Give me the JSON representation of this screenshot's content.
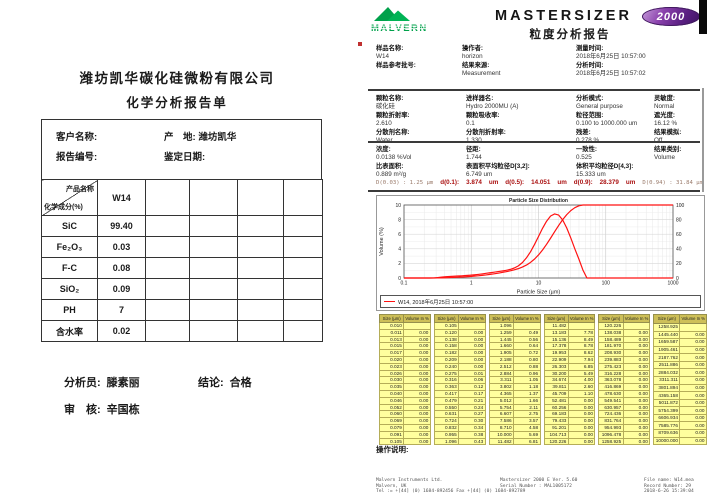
{
  "left_report": {
    "company": "潍坊凯华碳化硅微粉有限公司",
    "title": "化学分析报告单",
    "info": {
      "customer_label": "客户名称:",
      "origin_label": "产　地:",
      "origin_value": "潍坊凯华",
      "report_no_label": "报告编号:",
      "date_label": "鉴定日期:"
    },
    "table": {
      "product_header": "产品名称",
      "composition_header": "化学成分(%)",
      "product_value": "W14",
      "rows": [
        {
          "name": "SiC",
          "value": "99.40"
        },
        {
          "name": "Fe₂O₃",
          "value": "0.03"
        },
        {
          "name": "F-C",
          "value": "0.08"
        },
        {
          "name": "SiO₂",
          "value": "0.09"
        },
        {
          "name": "PH",
          "value": "7"
        },
        {
          "name": "含水率",
          "value": "0.02"
        }
      ]
    },
    "analyst_label": "分析员:",
    "analyst": "滕素丽",
    "conclusion_label": "结论:",
    "conclusion": "合格",
    "reviewer_label": "审　核:",
    "reviewer": "辛国栋"
  },
  "right_report": {
    "brand": {
      "logo_text": "MALVERN",
      "product": "MASTERSIZER",
      "badge": "2000",
      "title": "粒度分析报告"
    },
    "sample_info": {
      "columns": [
        [
          {
            "label": "样品名称:",
            "value": "W14"
          },
          {
            "label": "样品参考批号:",
            "value": ""
          }
        ],
        [
          {
            "label": "操作者:",
            "value": "horizon"
          },
          {
            "label": "结果来源:",
            "value": "Measurement"
          }
        ],
        [
          {
            "label": "测量时间:",
            "value": "2018年6月25日 10:57:00"
          },
          {
            "label": "分析时间:",
            "value": "2018年6月25日 10:57:02"
          }
        ]
      ]
    },
    "params": {
      "columns": [
        [
          {
            "label": "颗粒名称:",
            "value": "碳化硅"
          },
          {
            "label": "颗粒折射率:",
            "value": "2.610"
          },
          {
            "label": "分散剂名称:",
            "value": "Water"
          }
        ],
        [
          {
            "label": "进样器名:",
            "value": "Hydro 2000MU (A)"
          },
          {
            "label": "颗粒吸收率:",
            "value": "0.1"
          },
          {
            "label": "分散剂折射率:",
            "value": "1.330"
          }
        ],
        [
          {
            "label": "分析模式:",
            "value": "General purpose"
          },
          {
            "label": "粒径范围:",
            "value": "0.100 to 1000.000 um"
          },
          {
            "label": "残差:",
            "value": "0.278 %"
          }
        ],
        [
          {
            "label": "灵敏度:",
            "value": "Normal"
          },
          {
            "label": "遮光度:",
            "value": "16.12 %"
          },
          {
            "label": "结果模拟:",
            "value": "Off"
          }
        ]
      ]
    },
    "results": {
      "columns": [
        [
          {
            "label": "浓度:",
            "value": "0.0138 %Vol"
          },
          {
            "label": "比表面积:",
            "value": "0.889 m²/g"
          }
        ],
        [
          {
            "label": "径距:",
            "value": "1.744"
          },
          {
            "label": "表面积平均粒径D[3,2]:",
            "value": "6.749 um"
          }
        ],
        [
          {
            "label": "一致性:",
            "value": "0.525"
          },
          {
            "label": "体积平均粒径D[4,3]:",
            "value": "15.333 um"
          }
        ],
        [
          {
            "label": "结果类别:",
            "value": "Volume"
          }
        ]
      ]
    },
    "dvalues": {
      "left_note": "D(0.03) : 1.25 μm",
      "d10_label": "d(0.1):",
      "d10_value": "3.874",
      "d10_unit": "um",
      "d50_label": "d(0.5):",
      "d50_value": "14.051",
      "d50_unit": "um",
      "d90_label": "d(0.9):",
      "d90_value": "28.379",
      "d90_unit": "um",
      "right_note": "D(0.94) : 31.84 μm"
    },
    "chart_data": {
      "type": "line",
      "title": "Particle Size Distribution",
      "xlabel": "Particle Size (µm)",
      "ylabel": "Volume (%)",
      "xscale": "log",
      "xlim": [
        0.1,
        1000
      ],
      "ylim_left": [
        0,
        10
      ],
      "ylim_right": [
        0,
        100
      ],
      "x_ticks": [
        0.1,
        1,
        10,
        100,
        1000
      ],
      "x_tick_labels": [
        "0.1",
        "1",
        "10",
        "100",
        "1000"
      ],
      "left_axis_ticks": [
        0,
        2,
        4,
        6,
        8,
        10
      ],
      "right_axis_ticks": [
        0,
        20,
        40,
        60,
        80,
        100
      ],
      "grid": true,
      "legend": "W14, 2018年6月25日 10:57:00",
      "line_color": "#ff1212",
      "series": [
        {
          "name": "volume-frequency",
          "x": [
            0.1,
            0.24,
            0.275,
            0.316,
            0.363,
            0.417,
            0.479,
            0.55,
            0.631,
            0.724,
            0.832,
            0.955,
            1.096,
            1.259,
            1.445,
            1.66,
            1.905,
            2.188,
            2.512,
            2.884,
            3.311,
            3.802,
            4.365,
            5.012,
            5.754,
            6.607,
            7.586,
            8.71,
            10,
            11.482,
            13.183,
            15.136,
            17.378,
            19.953,
            22.909,
            26.303,
            30.2,
            34.674,
            39.811,
            45.709,
            52.481,
            1000
          ],
          "y": [
            0,
            0,
            0.01,
            0.06,
            0.12,
            0.17,
            0.21,
            0.24,
            0.27,
            0.3,
            0.34,
            0.38,
            0.43,
            0.49,
            0.56,
            0.64,
            0.72,
            0.8,
            0.88,
            0.96,
            1.05,
            1.18,
            1.37,
            1.66,
            2.11,
            2.75,
            3.57,
            4.58,
            5.69,
            6.81,
            7.78,
            8.49,
            8.78,
            8.62,
            7.94,
            6.85,
            5.49,
            4,
            2.6,
            1.1,
            0,
            0
          ]
        },
        {
          "name": "cumulative-undersize",
          "x": [
            0.1,
            0.24,
            0.275,
            0.316,
            0.363,
            0.417,
            0.479,
            0.55,
            0.631,
            0.724,
            0.832,
            0.955,
            1.096,
            1.259,
            1.445,
            1.66,
            1.905,
            2.188,
            2.512,
            2.884,
            3.311,
            3.802,
            4.365,
            5.012,
            5.754,
            6.607,
            7.586,
            8.71,
            10,
            11.482,
            13.183,
            15.136,
            17.378,
            19.953,
            22.909,
            26.303,
            30.2,
            34.674,
            39.811,
            45.709,
            52.481,
            1000
          ],
          "y": [
            0,
            0,
            0.01,
            0.07,
            0.19,
            0.36,
            0.57,
            0.81,
            1.08,
            1.38,
            1.72,
            2.1,
            2.53,
            3.02,
            3.58,
            4.22,
            4.94,
            5.74,
            6.62,
            7.58,
            8.63,
            9.81,
            11.18,
            12.84,
            14.95,
            17.7,
            21.27,
            25.85,
            31.54,
            38.35,
            46.13,
            54.62,
            63.4,
            72.02,
            79.96,
            86.81,
            92.3,
            96.3,
            98.9,
            100,
            100,
            100
          ]
        }
      ]
    },
    "size_table": {
      "size_header": "Size (µm)",
      "volume_header": "Volume In %",
      "pairs": [
        {
          "sizes": [
            "0.010",
            "0.011",
            "0.013",
            "0.015",
            "0.017",
            "0.020",
            "0.023",
            "0.026",
            "0.030",
            "0.035",
            "0.040",
            "0.046",
            "0.052",
            "0.060",
            "0.069",
            "0.079",
            "0.091",
            "0.105"
          ],
          "volumes": [
            "",
            "0.00",
            "0.00",
            "0.00",
            "0.00",
            "0.00",
            "0.00",
            "0.00",
            "0.00",
            "0.00",
            "0.00",
            "0.00",
            "0.00",
            "0.00",
            "0.00",
            "0.00",
            "0.00",
            "0.00"
          ]
        },
        {
          "sizes": [
            "0.105",
            "0.120",
            "0.138",
            "0.158",
            "0.182",
            "0.209",
            "0.240",
            "0.275",
            "0.316",
            "0.363",
            "0.417",
            "0.479",
            "0.550",
            "0.631",
            "0.724",
            "0.832",
            "0.955",
            "1.096"
          ],
          "volumes": [
            "",
            "0.00",
            "0.00",
            "0.00",
            "0.00",
            "0.00",
            "0.00",
            "0.01",
            "0.06",
            "0.12",
            "0.17",
            "0.21",
            "0.24",
            "0.27",
            "0.30",
            "0.34",
            "0.38",
            "0.43"
          ]
        },
        {
          "sizes": [
            "1.096",
            "1.259",
            "1.445",
            "1.660",
            "1.905",
            "2.188",
            "2.512",
            "2.884",
            "3.311",
            "3.802",
            "4.365",
            "5.012",
            "5.754",
            "6.607",
            "7.586",
            "8.710",
            "10.000",
            "11.482"
          ],
          "volumes": [
            "",
            "0.49",
            "0.56",
            "0.64",
            "0.72",
            "0.80",
            "0.88",
            "0.96",
            "1.05",
            "1.18",
            "1.37",
            "1.66",
            "2.11",
            "2.75",
            "3.57",
            "4.58",
            "5.69",
            "6.81"
          ]
        },
        {
          "sizes": [
            "11.482",
            "13.183",
            "15.136",
            "17.378",
            "19.953",
            "22.909",
            "26.303",
            "30.200",
            "34.674",
            "39.811",
            "45.709",
            "52.481",
            "60.256",
            "69.183",
            "79.433",
            "91.201",
            "104.713",
            "120.226"
          ],
          "volumes": [
            "",
            "7.78",
            "8.49",
            "8.78",
            "8.62",
            "7.94",
            "6.85",
            "5.49",
            "4.00",
            "2.60",
            "1.10",
            "0.00",
            "0.00",
            "0.00",
            "0.00",
            "0.00",
            "0.00",
            "0.00"
          ]
        },
        {
          "sizes": [
            "120.226",
            "138.038",
            "158.489",
            "181.970",
            "208.930",
            "239.883",
            "275.423",
            "316.228",
            "363.078",
            "416.869",
            "478.630",
            "549.541",
            "630.957",
            "724.436",
            "831.764",
            "954.993",
            "1096.478",
            "1258.925"
          ],
          "volumes": [
            "",
            "0.00",
            "0.00",
            "0.00",
            "0.00",
            "0.00",
            "0.00",
            "0.00",
            "0.00",
            "0.00",
            "0.00",
            "0.00",
            "0.00",
            "0.00",
            "0.00",
            "0.00",
            "0.00",
            "0.00"
          ]
        },
        {
          "sizes": [
            "1258.925",
            "1445.440",
            "1659.587",
            "1905.461",
            "2187.762",
            "2511.886",
            "2884.032",
            "3311.311",
            "3801.894",
            "4365.158",
            "5011.872",
            "5754.399",
            "6606.934",
            "7585.776",
            "8709.636",
            "10000.000"
          ],
          "volumes": [
            "",
            "0.00",
            "0.00",
            "0.00",
            "0.00",
            "0.00",
            "0.00",
            "0.00",
            "0.00",
            "0.00",
            "0.00",
            "0.00",
            "0.00",
            "0.00",
            "0.00",
            "0.00"
          ]
        }
      ]
    },
    "operation_note_label": "操作说明:",
    "footer": {
      "left_lines": [
        "Malvern Instruments Ltd.",
        "Malvern, UK",
        "Tel := +[44] (0) 1684-892456 Fax +[44] (0) 1684-892789"
      ],
      "center_lines": [
        "Mastersizer 2000 E Ver. 5.60",
        "Serial Number : MAL1005172"
      ],
      "right_lines": [
        "File name: W14.mea",
        "Record Number: 29",
        "2018-6-26 15:39:04"
      ]
    },
    "colors": {
      "curve_red": "#ff1212",
      "table_yellow": "#ffff9e",
      "table_header_tan": "#cdbf58",
      "logo_green": "#00a14b",
      "badge_purple": "#6a2d8f",
      "dvalue_red": "#aa1111"
    }
  }
}
